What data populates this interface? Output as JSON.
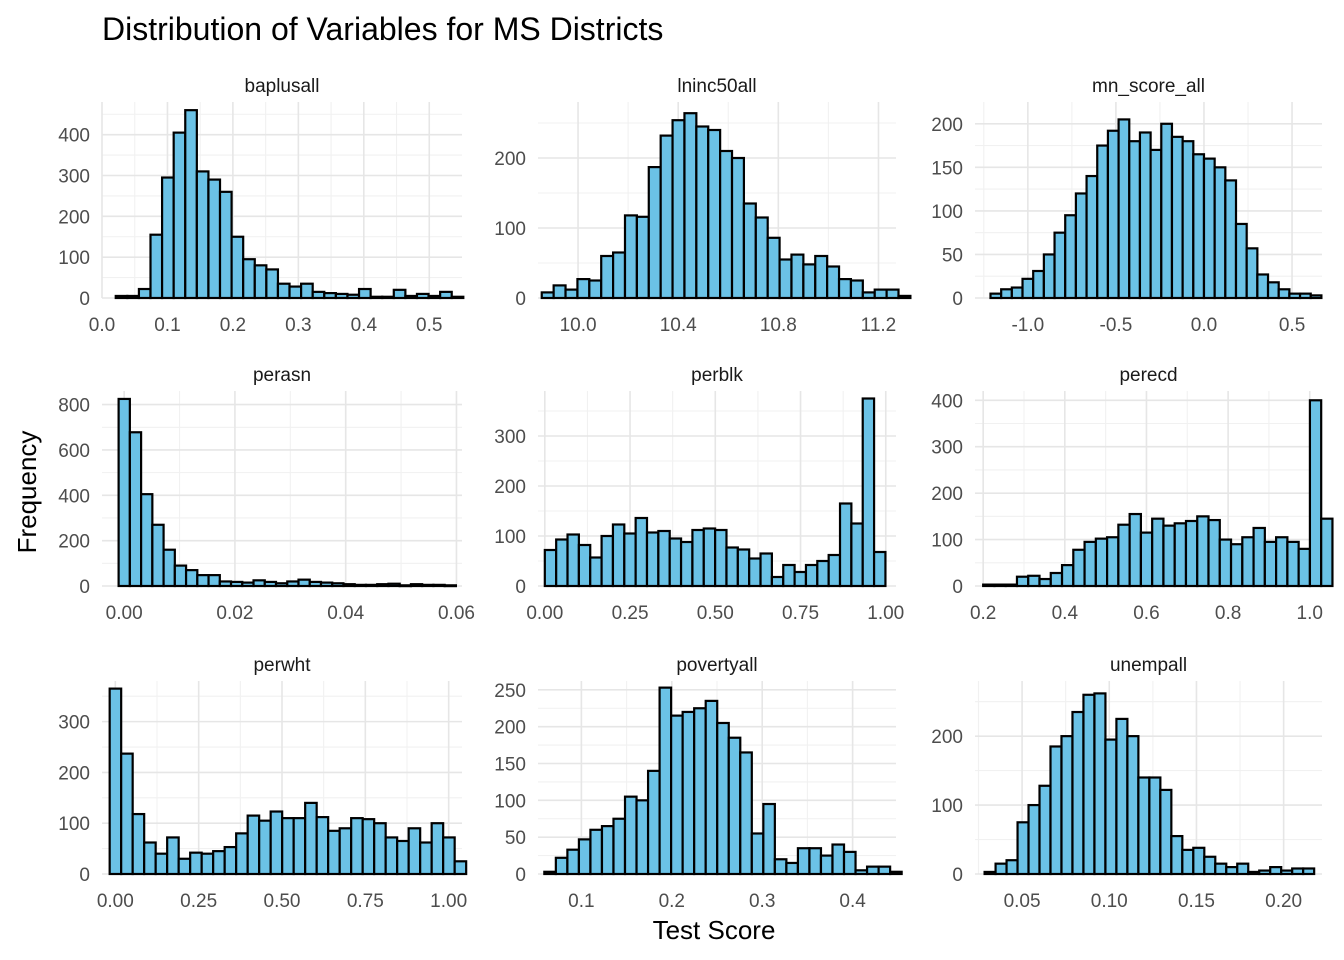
{
  "title": "Distribution of Variables for MS Districts",
  "xlabel": "Test Score",
  "ylabel": "Frequency",
  "colors": {
    "bar_fill": "#6bc2e6",
    "bar_stroke": "#000000",
    "grid": "#ebebeb"
  },
  "chart_data": [
    {
      "type": "bar",
      "panel": "baplusall",
      "bin_start": 0.021,
      "bin_width": 0.0177,
      "values": [
        5,
        5,
        22,
        155,
        295,
        405,
        460,
        310,
        290,
        260,
        150,
        95,
        80,
        70,
        35,
        28,
        35,
        15,
        12,
        10,
        8,
        22,
        3,
        3,
        20,
        5,
        10,
        5,
        15,
        3
      ],
      "xlim": [
        0.0,
        0.55
      ],
      "ylim": [
        0,
        480
      ],
      "xticks": [
        0.0,
        0.1,
        0.2,
        0.3,
        0.4,
        0.5
      ],
      "xtick_labels": [
        "0.0",
        "0.1",
        "0.2",
        "0.3",
        "0.4",
        "0.5"
      ],
      "yticks": [
        0,
        100,
        200,
        300,
        400
      ],
      "ytick_labels": [
        "0",
        "100",
        "200",
        "300",
        "400"
      ]
    },
    {
      "type": "bar",
      "panel": "lninc50all",
      "bin_start": 9.855,
      "bin_width": 0.0475,
      "values": [
        8,
        18,
        12,
        27,
        25,
        60,
        65,
        118,
        116,
        187,
        232,
        254,
        264,
        245,
        240,
        210,
        200,
        135,
        115,
        86,
        55,
        62,
        48,
        60,
        45,
        27,
        25,
        8,
        12,
        12,
        3
      ],
      "xlim": [
        9.84,
        11.27
      ],
      "ylim": [
        0,
        280
      ],
      "xticks": [
        10.0,
        10.4,
        10.8,
        11.2
      ],
      "xtick_labels": [
        "10.0",
        "10.4",
        "10.8",
        "11.2"
      ],
      "yticks": [
        0,
        100,
        200
      ],
      "ytick_labels": [
        "0",
        "100",
        "200"
      ]
    },
    {
      "type": "bar",
      "panel": "mn_score_all",
      "bin_start": -1.212,
      "bin_width": 0.0606,
      "values": [
        5,
        10,
        12,
        22,
        31,
        50,
        75,
        95,
        120,
        140,
        175,
        192,
        205,
        180,
        190,
        170,
        200,
        185,
        180,
        165,
        160,
        150,
        135,
        85,
        57,
        27,
        18,
        10,
        5,
        5,
        3
      ],
      "xlim": [
        -1.3,
        0.67
      ],
      "ylim": [
        0,
        225
      ],
      "xticks": [
        -1.0,
        -0.5,
        0.0,
        0.5
      ],
      "xtick_labels": [
        "-1.0",
        "-0.5",
        "0.0",
        "0.5"
      ],
      "yticks": [
        0,
        50,
        100,
        150,
        200
      ],
      "ytick_labels": [
        "0",
        "50",
        "100",
        "150",
        "200"
      ]
    },
    {
      "type": "bar",
      "panel": "perasn",
      "bin_start": -0.001,
      "bin_width": 0.00203,
      "values": [
        825,
        678,
        405,
        270,
        160,
        90,
        70,
        48,
        48,
        20,
        18,
        15,
        25,
        18,
        12,
        20,
        28,
        18,
        15,
        12,
        8,
        5,
        5,
        8,
        10,
        3,
        8,
        5,
        5,
        3
      ],
      "xlim": [
        -0.004,
        0.061
      ],
      "ylim": [
        0,
        860
      ],
      "xticks": [
        0.0,
        0.02,
        0.04,
        0.06
      ],
      "xtick_labels": [
        "0.00",
        "0.02",
        "0.04",
        "0.06"
      ],
      "yticks": [
        0,
        200,
        400,
        600,
        800
      ],
      "ytick_labels": [
        "0",
        "200",
        "400",
        "600",
        "800"
      ]
    },
    {
      "type": "bar",
      "panel": "perblk",
      "bin_start": 0.0,
      "bin_width": 0.0333,
      "values": [
        72,
        93,
        103,
        82,
        57,
        100,
        123,
        105,
        136,
        107,
        110,
        95,
        88,
        112,
        115,
        112,
        77,
        73,
        55,
        65,
        18,
        42,
        28,
        42,
        50,
        62,
        165,
        125,
        375,
        68
      ],
      "xlim": [
        -0.02,
        1.03
      ],
      "ylim": [
        0,
        390
      ],
      "xticks": [
        0.0,
        0.25,
        0.5,
        0.75,
        1.0
      ],
      "xtick_labels": [
        "0.00",
        "0.25",
        "0.50",
        "0.75",
        "1.00"
      ],
      "yticks": [
        0,
        100,
        200,
        300
      ],
      "ytick_labels": [
        "0",
        "100",
        "200",
        "300"
      ]
    },
    {
      "type": "bar",
      "panel": "perecd",
      "bin_start": 0.2,
      "bin_width": 0.0276,
      "values": [
        3,
        3,
        3,
        20,
        22,
        15,
        28,
        45,
        78,
        95,
        102,
        105,
        132,
        155,
        115,
        145,
        130,
        135,
        140,
        150,
        142,
        100,
        90,
        105,
        125,
        95,
        105,
        95,
        80,
        400,
        145
      ],
      "xlim": [
        0.18,
        1.03
      ],
      "ylim": [
        0,
        420
      ],
      "xticks": [
        0.2,
        0.4,
        0.6,
        0.8,
        1.0
      ],
      "xtick_labels": [
        "0.2",
        "0.4",
        "0.6",
        "0.8",
        "1.0"
      ],
      "yticks": [
        0,
        100,
        200,
        300,
        400
      ],
      "ytick_labels": [
        "0",
        "100",
        "200",
        "300",
        "400"
      ]
    },
    {
      "type": "bar",
      "panel": "perwht",
      "bin_start": -0.017,
      "bin_width": 0.0345,
      "values": [
        365,
        237,
        118,
        62,
        40,
        72,
        30,
        42,
        40,
        45,
        53,
        80,
        115,
        105,
        123,
        110,
        110,
        140,
        112,
        85,
        90,
        110,
        108,
        100,
        72,
        65,
        90,
        62,
        100,
        72,
        25
      ],
      "xlim": [
        -0.04,
        1.04
      ],
      "ylim": [
        0,
        380
      ],
      "xticks": [
        0.0,
        0.25,
        0.5,
        0.75,
        1.0
      ],
      "xtick_labels": [
        "0.00",
        "0.25",
        "0.50",
        "0.75",
        "1.00"
      ],
      "yticks": [
        0,
        100,
        200,
        300
      ],
      "ytick_labels": [
        "0",
        "100",
        "200",
        "300"
      ]
    },
    {
      "type": "bar",
      "panel": "povertyall",
      "bin_start": 0.059,
      "bin_width": 0.01275,
      "values": [
        3,
        22,
        33,
        47,
        60,
        65,
        75,
        105,
        100,
        140,
        253,
        215,
        220,
        225,
        235,
        205,
        185,
        165,
        55,
        95,
        20,
        15,
        35,
        35,
        25,
        40,
        30,
        5,
        10,
        10,
        3
      ],
      "xlim": [
        0.052,
        0.448
      ],
      "ylim": [
        0,
        262
      ],
      "xticks": [
        0.1,
        0.2,
        0.3,
        0.4
      ],
      "xtick_labels": [
        "0.1",
        "0.2",
        "0.3",
        "0.4"
      ],
      "yticks": [
        0,
        50,
        100,
        150,
        200,
        250
      ],
      "ytick_labels": [
        "0",
        "50",
        "100",
        "150",
        "200",
        "250"
      ]
    },
    {
      "type": "bar",
      "panel": "unempall",
      "bin_start": 0.0285,
      "bin_width": 0.0063,
      "values": [
        3,
        15,
        20,
        75,
        100,
        128,
        185,
        200,
        235,
        260,
        262,
        195,
        225,
        200,
        140,
        140,
        122,
        55,
        35,
        38,
        25,
        15,
        10,
        15,
        3,
        5,
        10,
        5,
        8,
        8
      ],
      "xlim": [
        0.023,
        0.222
      ],
      "ylim": [
        0,
        280
      ],
      "xticks": [
        0.05,
        0.1,
        0.15,
        0.2
      ],
      "xtick_labels": [
        "0.05",
        "0.10",
        "0.15",
        "0.20"
      ],
      "yticks": [
        0,
        100,
        200
      ],
      "ytick_labels": [
        "0",
        "100",
        "200"
      ]
    }
  ]
}
